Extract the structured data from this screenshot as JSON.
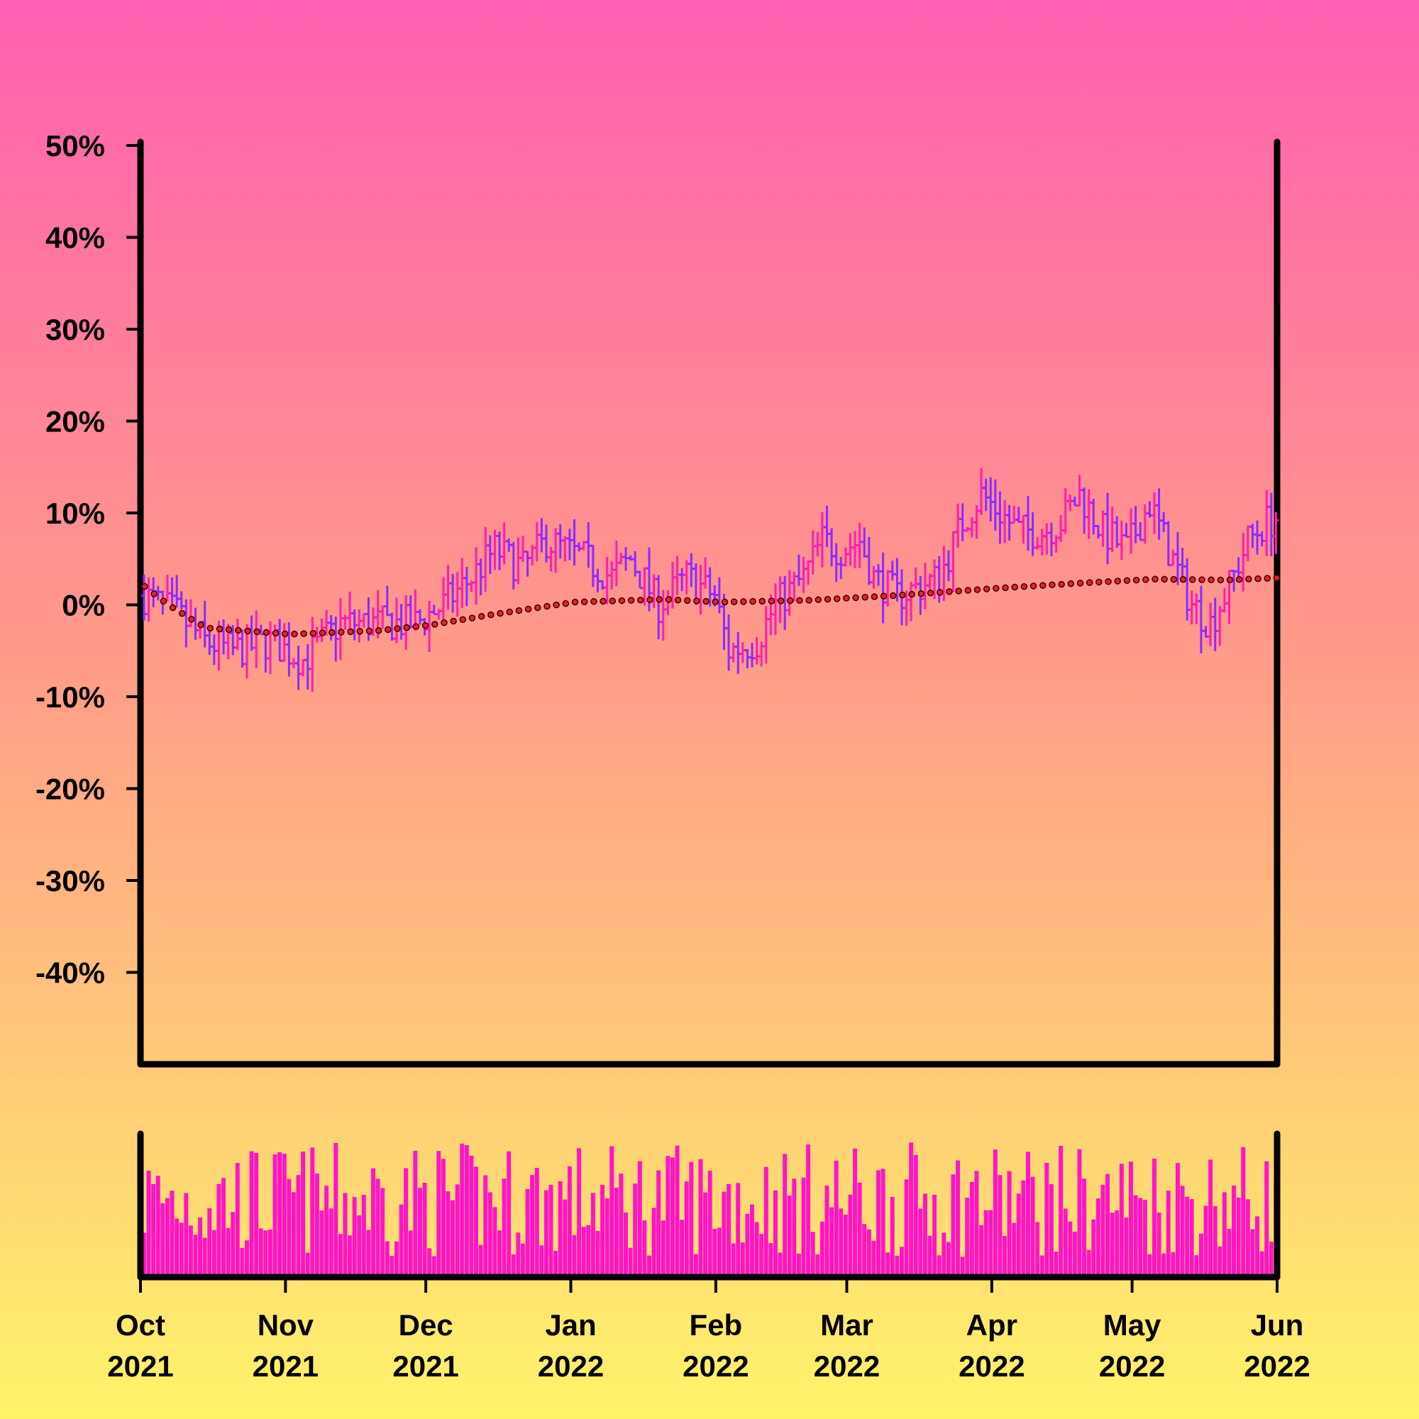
{
  "chart_data": {
    "type": "ohlc",
    "title": "",
    "xlabel": "",
    "ylabel": "",
    "x_axis": {
      "range": [
        "2021-10-01",
        "2022-06-01"
      ],
      "ticks": [
        {
          "date": "2021-10-01",
          "month": "Oct",
          "year": "2021"
        },
        {
          "date": "2021-11-01",
          "month": "Nov",
          "year": "2021"
        },
        {
          "date": "2021-12-01",
          "month": "Dec",
          "year": "2021"
        },
        {
          "date": "2022-01-01",
          "month": "Jan",
          "year": "2022"
        },
        {
          "date": "2022-02-01",
          "month": "Feb",
          "year": "2022"
        },
        {
          "date": "2022-03-01",
          "month": "Mar",
          "year": "2022"
        },
        {
          "date": "2022-04-01",
          "month": "Apr",
          "year": "2022"
        },
        {
          "date": "2022-05-01",
          "month": "May",
          "year": "2022"
        },
        {
          "date": "2022-06-01",
          "month": "Jun",
          "year": "2022"
        }
      ]
    },
    "y_axis": {
      "unit": "percent",
      "range": [
        -50,
        50
      ],
      "ticks": [
        50,
        40,
        30,
        20,
        10,
        0,
        -10,
        -20,
        -30,
        -40
      ],
      "tick_labels": [
        "50%",
        "40%",
        "30%",
        "20%",
        "10%",
        "0%",
        "-10%",
        "-20%",
        "-30%",
        "-40%"
      ]
    },
    "grid": false,
    "legend": "none",
    "colors": {
      "up": "#ff1fb0",
      "down": "#8c2bff",
      "trend_dot_fill": "#e8202a",
      "trend_dot_stroke": "#3a0000",
      "volume": "#ff14c8",
      "axis": "#000000"
    },
    "price_anchors": [
      {
        "date": "2021-10-01",
        "value": 1
      },
      {
        "date": "2021-10-08",
        "value": -1
      },
      {
        "date": "2021-10-14",
        "value": -4
      },
      {
        "date": "2021-10-20",
        "value": -5
      },
      {
        "date": "2021-10-28",
        "value": -4
      },
      {
        "date": "2021-11-04",
        "value": -6
      },
      {
        "date": "2021-11-12",
        "value": -2
      },
      {
        "date": "2021-11-20",
        "value": -2
      },
      {
        "date": "2021-11-28",
        "value": -2
      },
      {
        "date": "2021-12-04",
        "value": 0
      },
      {
        "date": "2021-12-10",
        "value": 3
      },
      {
        "date": "2021-12-15",
        "value": 6
      },
      {
        "date": "2021-12-21",
        "value": 4
      },
      {
        "date": "2021-12-26",
        "value": 7
      },
      {
        "date": "2022-01-03",
        "value": 5
      },
      {
        "date": "2022-01-09",
        "value": 3
      },
      {
        "date": "2022-01-13",
        "value": 5
      },
      {
        "date": "2022-01-19",
        "value": 0
      },
      {
        "date": "2022-01-25",
        "value": 3
      },
      {
        "date": "2022-01-31",
        "value": 1
      },
      {
        "date": "2022-02-03",
        "value": -5
      },
      {
        "date": "2022-02-09",
        "value": -4
      },
      {
        "date": "2022-02-13",
        "value": 0
      },
      {
        "date": "2022-02-19",
        "value": 3
      },
      {
        "date": "2022-02-23",
        "value": 7
      },
      {
        "date": "2022-02-27",
        "value": 6
      },
      {
        "date": "2022-03-03",
        "value": 7
      },
      {
        "date": "2022-03-06",
        "value": 3
      },
      {
        "date": "2022-03-11",
        "value": 1
      },
      {
        "date": "2022-03-16",
        "value": 2
      },
      {
        "date": "2022-03-20",
        "value": 3
      },
      {
        "date": "2022-03-25",
        "value": 9
      },
      {
        "date": "2022-03-29",
        "value": 12
      },
      {
        "date": "2022-04-02",
        "value": 10
      },
      {
        "date": "2022-04-06",
        "value": 8
      },
      {
        "date": "2022-04-11",
        "value": 8
      },
      {
        "date": "2022-04-15",
        "value": 9
      },
      {
        "date": "2022-04-19",
        "value": 12
      },
      {
        "date": "2022-04-24",
        "value": 8
      },
      {
        "date": "2022-04-29",
        "value": 6
      },
      {
        "date": "2022-05-04",
        "value": 11
      },
      {
        "date": "2022-05-08",
        "value": 6
      },
      {
        "date": "2022-05-13",
        "value": 0
      },
      {
        "date": "2022-05-17",
        "value": -2
      },
      {
        "date": "2022-05-21",
        "value": 2
      },
      {
        "date": "2022-05-25",
        "value": 7
      },
      {
        "date": "2022-05-29",
        "value": 9
      },
      {
        "date": "2022-06-03",
        "value": 10
      },
      {
        "date": "2022-06-08",
        "value": 10
      }
    ],
    "moving_average_anchors": [
      {
        "date": "2021-10-01",
        "value": 2
      },
      {
        "date": "2021-10-06",
        "value": 0
      },
      {
        "date": "2021-10-14",
        "value": -2.5
      },
      {
        "date": "2021-11-01",
        "value": -3.2
      },
      {
        "date": "2021-11-20",
        "value": -2.8
      },
      {
        "date": "2021-12-01",
        "value": -2.2
      },
      {
        "date": "2021-12-15",
        "value": -1
      },
      {
        "date": "2022-01-01",
        "value": 0.3
      },
      {
        "date": "2022-01-20",
        "value": 0.6
      },
      {
        "date": "2022-02-01",
        "value": 0.3
      },
      {
        "date": "2022-02-20",
        "value": 0.5
      },
      {
        "date": "2022-03-10",
        "value": 1.0
      },
      {
        "date": "2022-04-01",
        "value": 1.8
      },
      {
        "date": "2022-04-20",
        "value": 2.4
      },
      {
        "date": "2022-05-05",
        "value": 2.8
      },
      {
        "date": "2022-05-20",
        "value": 2.7
      },
      {
        "date": "2022-06-08",
        "value": 3.1
      }
    ]
  }
}
